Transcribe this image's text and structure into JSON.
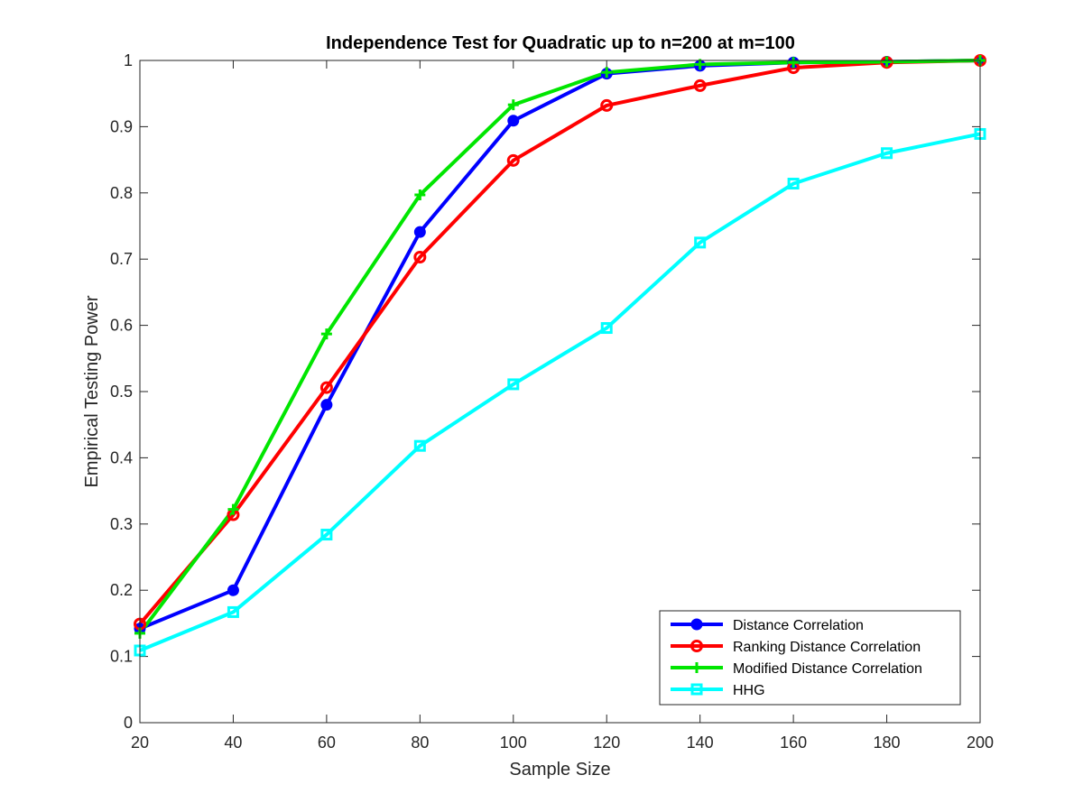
{
  "chart_data": {
    "type": "line",
    "title": "Independence Test for Quadratic up to n=200 at m=100",
    "xlabel": "Sample Size",
    "ylabel": "Empirical Testing Power",
    "xlim": [
      20,
      200
    ],
    "ylim": [
      0,
      1
    ],
    "x": [
      20,
      40,
      60,
      80,
      100,
      120,
      140,
      160,
      180,
      200
    ],
    "xticks": [
      "20",
      "40",
      "60",
      "80",
      "100",
      "120",
      "140",
      "160",
      "180",
      "200"
    ],
    "yticks": [
      "0",
      "0.1",
      "0.2",
      "0.3",
      "0.4",
      "0.5",
      "0.6",
      "0.7",
      "0.8",
      "0.9",
      "1"
    ],
    "legend_position": "bottom-right",
    "series": [
      {
        "name": "Distance Correlation",
        "color": "#0000ff",
        "marker": "filled-circle",
        "values": [
          0.142,
          0.2,
          0.48,
          0.741,
          0.909,
          0.98,
          0.992,
          0.997,
          0.998,
          1.0
        ]
      },
      {
        "name": "Ranking Distance Correlation",
        "color": "#ff0000",
        "marker": "circle",
        "values": [
          0.149,
          0.314,
          0.506,
          0.703,
          0.849,
          0.932,
          0.962,
          0.989,
          0.997,
          1.0
        ]
      },
      {
        "name": "Modified Distance Correlation",
        "color": "#00e600",
        "marker": "plus",
        "values": [
          0.135,
          0.322,
          0.587,
          0.797,
          0.933,
          0.982,
          0.994,
          0.997,
          0.998,
          1.0
        ]
      },
      {
        "name": "HHG",
        "color": "#00ffff",
        "marker": "square",
        "values": [
          0.109,
          0.167,
          0.284,
          0.418,
          0.511,
          0.596,
          0.725,
          0.814,
          0.86,
          0.889
        ]
      }
    ]
  }
}
